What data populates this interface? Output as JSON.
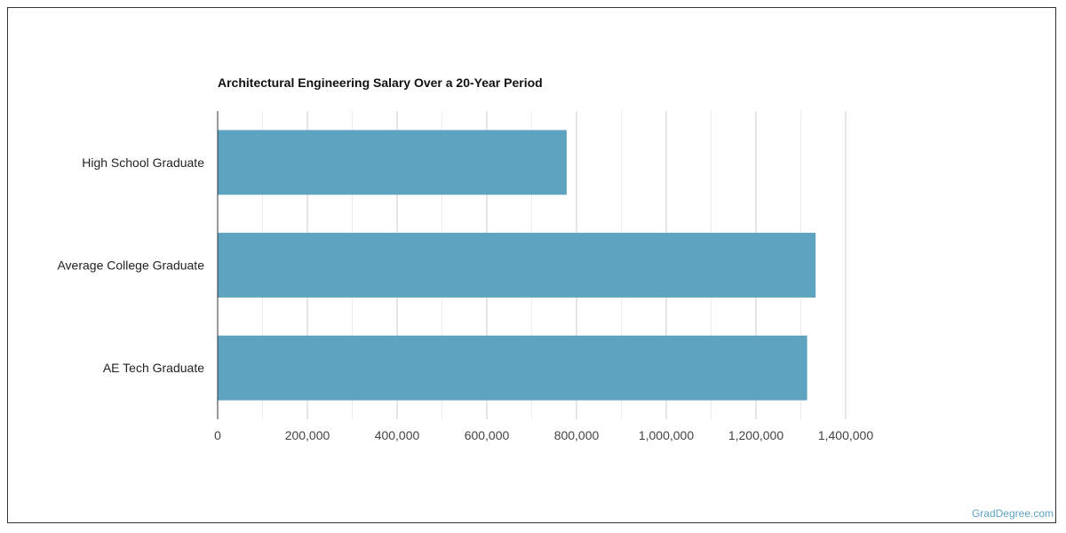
{
  "chart_data": {
    "type": "bar",
    "orientation": "horizontal",
    "title": "Architectural Engineering Salary Over a 20-Year Period",
    "categories": [
      "High School Graduate",
      "Average College Graduate",
      "AE Tech Graduate"
    ],
    "values": [
      778000,
      1333000,
      1314000
    ],
    "xlim": [
      0,
      1400000
    ],
    "xticks": [
      "0",
      "200,000",
      "400,000",
      "600,000",
      "800,000",
      "1,000,000",
      "1,200,000",
      "1,400,000"
    ],
    "xlabel": "",
    "ylabel": "",
    "grid": true,
    "bar_color": "#5ea3c0"
  },
  "credit": "GradDegree.com"
}
